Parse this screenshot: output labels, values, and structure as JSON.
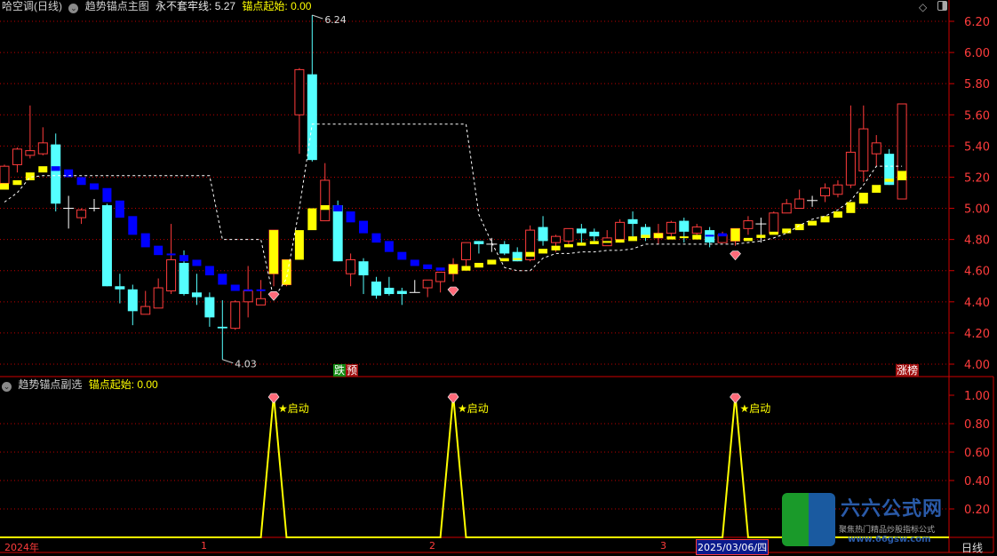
{
  "header": {
    "stock": "哈空调(日线)",
    "main_indicator": "趋势锚点主图",
    "line_label": "永不套牢线: 5.27",
    "anchor_label": "锚点起始: 0.00"
  },
  "sub_header": {
    "indicator": "趋势锚点副选",
    "anchor_label": "锚点起始: 0.00"
  },
  "annotations": {
    "high": "6.24",
    "low": "4.03",
    "tag_left": [
      "跌",
      "预"
    ],
    "tag_right": "涨榜",
    "signal_label": "★启动"
  },
  "date_axis": {
    "labels": [
      "2024年",
      "1",
      "2",
      "3"
    ],
    "selected": "2025/03/06/四",
    "period": "日线"
  },
  "logo": {
    "name": "六六公式网",
    "slogan": "聚焦热门精品炒股指标公式",
    "url": "www.66gsw.com"
  },
  "colors": {
    "up": "#ff3c3c",
    "down": "#54ffff",
    "doji": "#ffffff",
    "trend_up": "#ffff00",
    "trend_down": "#0000ff",
    "line": "#ffffff",
    "grid": "#c00000",
    "signal": "#ffff00"
  },
  "chart_data": [
    {
      "type": "candlestick",
      "title": "趋势锚点主图",
      "ylim": [
        4.0,
        6.2
      ],
      "y_ticks": [
        "6.20",
        "6.00",
        "5.80",
        "5.60",
        "5.40",
        "5.20",
        "5.00",
        "4.80",
        "4.60",
        "4.40",
        "4.20",
        "4.00"
      ],
      "grid": true,
      "ohlc": [
        [
          5.16,
          5.28,
          5.15,
          5.27
        ],
        [
          5.28,
          5.39,
          5.23,
          5.38
        ],
        [
          5.34,
          5.66,
          5.32,
          5.37
        ],
        [
          5.35,
          5.52,
          5.34,
          5.42
        ],
        [
          5.41,
          5.48,
          4.98,
          5.03
        ],
        [
          5.0,
          5.08,
          4.87,
          5.0
        ],
        [
          4.94,
          5.0,
          4.9,
          4.99
        ],
        [
          5.0,
          5.06,
          4.98,
          5.0
        ],
        [
          5.02,
          5.03,
          4.5,
          4.5
        ],
        [
          4.5,
          4.58,
          4.39,
          4.48
        ],
        [
          4.48,
          4.51,
          4.25,
          4.34
        ],
        [
          4.32,
          4.47,
          4.32,
          4.37
        ],
        [
          4.36,
          4.55,
          4.36,
          4.49
        ],
        [
          4.47,
          4.9,
          4.45,
          4.67
        ],
        [
          4.65,
          4.73,
          4.44,
          4.45
        ],
        [
          4.46,
          4.58,
          4.38,
          4.43
        ],
        [
          4.43,
          4.46,
          4.24,
          4.3
        ],
        [
          4.24,
          4.41,
          4.03,
          4.23
        ],
        [
          4.23,
          4.41,
          4.22,
          4.4
        ],
        [
          4.4,
          4.63,
          4.3,
          4.47
        ],
        [
          4.38,
          4.54,
          4.38,
          4.42
        ],
        [
          4.58,
          4.86,
          4.5,
          4.86
        ],
        [
          4.51,
          4.67,
          4.5,
          4.67
        ],
        [
          5.6,
          5.9,
          5.35,
          5.89
        ],
        [
          5.86,
          6.24,
          5.3,
          5.31
        ],
        [
          4.92,
          5.29,
          4.92,
          5.18
        ],
        [
          5.02,
          5.05,
          4.66,
          4.66
        ],
        [
          4.58,
          4.71,
          4.5,
          4.67
        ],
        [
          4.66,
          4.68,
          4.45,
          4.57
        ],
        [
          4.53,
          4.56,
          4.42,
          4.44
        ],
        [
          4.49,
          4.56,
          4.44,
          4.45
        ],
        [
          4.47,
          4.49,
          4.38,
          4.45
        ],
        [
          4.46,
          4.54,
          4.46,
          4.46
        ],
        [
          4.49,
          4.54,
          4.43,
          4.54
        ],
        [
          4.53,
          4.59,
          4.46,
          4.59
        ],
        [
          4.58,
          4.68,
          4.53,
          4.64
        ],
        [
          4.67,
          4.78,
          4.62,
          4.78
        ],
        [
          4.79,
          4.79,
          4.71,
          4.77
        ],
        [
          4.77,
          4.81,
          4.72,
          4.77
        ],
        [
          4.77,
          4.79,
          4.7,
          4.71
        ],
        [
          4.72,
          4.75,
          4.66,
          4.66
        ],
        [
          4.67,
          4.89,
          4.66,
          4.86
        ],
        [
          4.88,
          4.95,
          4.76,
          4.79
        ],
        [
          4.78,
          4.83,
          4.72,
          4.82
        ],
        [
          4.79,
          4.87,
          4.75,
          4.87
        ],
        [
          4.87,
          4.9,
          4.78,
          4.84
        ],
        [
          4.85,
          4.87,
          4.79,
          4.82
        ],
        [
          4.76,
          4.86,
          4.76,
          4.81
        ],
        [
          4.8,
          4.93,
          4.78,
          4.91
        ],
        [
          4.93,
          4.98,
          4.82,
          4.9
        ],
        [
          4.88,
          4.9,
          4.79,
          4.81
        ],
        [
          4.81,
          4.9,
          4.77,
          4.84
        ],
        [
          4.84,
          4.92,
          4.81,
          4.91
        ],
        [
          4.92,
          4.94,
          4.78,
          4.85
        ],
        [
          4.84,
          4.9,
          4.83,
          4.88
        ],
        [
          4.86,
          4.88,
          4.75,
          4.78
        ],
        [
          4.78,
          4.85,
          4.78,
          4.83
        ],
        [
          4.79,
          4.87,
          4.76,
          4.87
        ],
        [
          4.87,
          4.95,
          4.83,
          4.92
        ],
        [
          4.9,
          4.94,
          4.78,
          4.9
        ],
        [
          4.84,
          4.98,
          4.84,
          4.97
        ],
        [
          4.97,
          5.06,
          4.97,
          5.03
        ],
        [
          5.0,
          5.12,
          5.0,
          5.06
        ],
        [
          5.05,
          5.08,
          5.01,
          5.05
        ],
        [
          5.08,
          5.16,
          5.04,
          5.13
        ],
        [
          5.09,
          5.18,
          5.07,
          5.15
        ],
        [
          5.15,
          5.66,
          5.13,
          5.36
        ],
        [
          5.24,
          5.66,
          5.17,
          5.51
        ],
        [
          5.35,
          5.47,
          5.27,
          5.42
        ],
        [
          5.35,
          5.38,
          5.15,
          5.15
        ],
        [
          5.06,
          5.67,
          5.06,
          5.67
        ]
      ],
      "trend_blocks": [
        [
          "up",
          5.16,
          5.12
        ],
        [
          "up",
          5.18,
          5.15
        ],
        [
          "up",
          5.23,
          5.18
        ],
        [
          "up",
          5.27,
          5.23
        ],
        [
          "down",
          5.27,
          5.24
        ],
        [
          "down",
          5.25,
          5.2
        ],
        [
          "down",
          5.2,
          5.15
        ],
        [
          "down",
          5.16,
          5.12
        ],
        [
          "down",
          5.13,
          5.04
        ],
        [
          "down",
          5.05,
          4.94
        ],
        [
          "down",
          4.95,
          4.83
        ],
        [
          "down",
          4.84,
          4.75
        ],
        [
          "down",
          4.76,
          4.7
        ],
        [
          "down",
          4.71,
          4.7
        ],
        [
          "down",
          4.7,
          4.66
        ],
        [
          "down",
          4.67,
          4.63
        ],
        [
          "down",
          4.63,
          4.57
        ],
        [
          "down",
          4.58,
          4.51
        ],
        [
          "down",
          4.51,
          4.47
        ],
        [
          "down",
          4.48,
          4.47
        ],
        [
          "down",
          4.48,
          4.47
        ],
        [
          "up",
          4.86,
          4.58
        ],
        [
          "up",
          4.67,
          4.51
        ],
        [
          "up",
          4.86,
          4.67
        ],
        [
          "up",
          5.0,
          4.86
        ],
        [
          "up",
          5.02,
          4.99
        ],
        [
          "down",
          5.02,
          4.98
        ],
        [
          "down",
          4.98,
          4.91
        ],
        [
          "down",
          4.92,
          4.84
        ],
        [
          "down",
          4.84,
          4.78
        ],
        [
          "down",
          4.79,
          4.72
        ],
        [
          "down",
          4.72,
          4.67
        ],
        [
          "down",
          4.67,
          4.63
        ],
        [
          "down",
          4.64,
          4.61
        ],
        [
          "down",
          4.62,
          4.6
        ],
        [
          "up",
          4.64,
          4.58
        ],
        [
          "up",
          4.63,
          4.6
        ],
        [
          "up",
          4.65,
          4.62
        ],
        [
          "up",
          4.67,
          4.64
        ],
        [
          "up",
          4.68,
          4.66
        ],
        [
          "up",
          4.68,
          4.67
        ],
        [
          "up",
          4.72,
          4.69
        ],
        [
          "up",
          4.74,
          4.71
        ],
        [
          "up",
          4.76,
          4.73
        ],
        [
          "up",
          4.77,
          4.75
        ],
        [
          "up",
          4.78,
          4.76
        ],
        [
          "up",
          4.79,
          4.77
        ],
        [
          "up",
          4.79,
          4.78
        ],
        [
          "up",
          4.8,
          4.78
        ],
        [
          "up",
          4.82,
          4.79
        ],
        [
          "up",
          4.83,
          4.81
        ],
        [
          "up",
          4.84,
          4.81
        ],
        [
          "up",
          4.82,
          4.8
        ],
        [
          "up",
          4.82,
          4.81
        ],
        [
          "up",
          4.83,
          4.8
        ],
        [
          "down",
          4.83,
          4.82
        ],
        [
          "down",
          4.84,
          4.82
        ],
        [
          "up",
          4.87,
          4.79
        ],
        [
          "up",
          4.81,
          4.79
        ],
        [
          "up",
          4.83,
          4.81
        ],
        [
          "up",
          4.85,
          4.83
        ],
        [
          "up",
          4.87,
          4.84
        ],
        [
          "up",
          4.9,
          4.86
        ],
        [
          "up",
          4.92,
          4.89
        ],
        [
          "up",
          4.95,
          4.91
        ],
        [
          "up",
          4.98,
          4.94
        ],
        [
          "up",
          5.04,
          4.97
        ],
        [
          "up",
          5.1,
          5.03
        ],
        [
          "up",
          5.15,
          5.1
        ],
        [
          "up",
          5.19,
          5.17
        ],
        [
          "up",
          5.24,
          5.18
        ]
      ],
      "never_trapped_line": [
        5.04,
        5.1,
        5.2,
        5.21,
        5.21,
        5.21,
        5.21,
        5.21,
        5.21,
        5.21,
        5.21,
        5.21,
        5.21,
        5.21,
        5.21,
        5.21,
        5.21,
        4.8,
        4.8,
        4.8,
        4.8,
        4.42,
        4.55,
        5.0,
        5.54,
        5.54,
        5.54,
        5.54,
        5.54,
        5.54,
        5.54,
        5.54,
        5.54,
        5.54,
        5.54,
        5.54,
        5.54,
        4.96,
        4.78,
        4.62,
        4.6,
        4.6,
        4.68,
        4.71,
        4.71,
        4.72,
        4.72,
        4.73,
        4.73,
        4.74,
        4.77,
        4.77,
        4.77,
        4.77,
        4.77,
        4.77,
        4.77,
        4.77,
        4.78,
        4.79,
        4.81,
        4.84,
        4.89,
        4.93,
        4.95,
        4.99,
        5.05,
        5.15,
        5.27,
        5.27,
        5.27
      ],
      "signals": [
        21,
        35,
        57
      ]
    },
    {
      "type": "line",
      "title": "趋势锚点副选",
      "ylim": [
        0,
        1.0
      ],
      "y_ticks": [
        "1.00",
        "0.80",
        "0.60",
        "0.40",
        "0.20"
      ],
      "grid": true,
      "values": [
        0,
        0,
        0,
        0,
        0,
        0,
        0,
        0,
        0,
        0,
        0,
        0,
        0,
        0,
        0,
        0,
        0,
        0,
        0,
        0,
        0,
        1,
        0,
        0,
        0,
        0,
        0,
        0,
        0,
        0,
        0,
        0,
        0,
        0,
        0,
        1,
        0,
        0,
        0,
        0,
        0,
        0,
        0,
        0,
        0,
        0,
        0,
        0,
        0,
        0,
        0,
        0,
        0,
        0,
        0,
        0,
        0,
        1,
        0,
        0,
        0,
        0,
        0,
        0,
        0,
        0,
        0,
        0,
        0,
        0,
        0
      ]
    }
  ]
}
